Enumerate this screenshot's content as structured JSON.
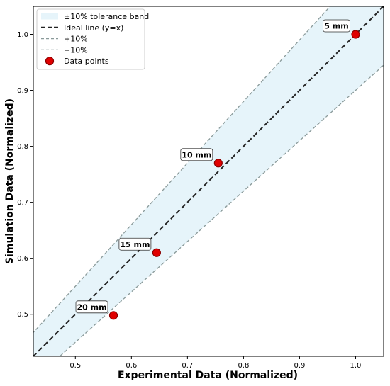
{
  "colors": {
    "band_fill": "#e6f4fa",
    "ideal_line": "#222222",
    "tolerance_line": "#8a9a9a",
    "point_fill": "#e00000",
    "point_edge": "#8b0000",
    "axis": "#000000",
    "label_box": "#ffffff"
  },
  "chart_data": {
    "type": "scatter",
    "xlabel": "Experimental Data (Normalized)",
    "ylabel": "Simulation Data (Normalized)",
    "xlim": [
      0.425,
      1.05
    ],
    "ylim": [
      0.425,
      1.05
    ],
    "xticks": [
      0.5,
      0.6,
      0.7,
      0.8,
      0.9,
      1.0
    ],
    "yticks": [
      0.5,
      0.6,
      0.7,
      0.8,
      0.9,
      1.0
    ],
    "xtick_labels": [
      "0.5",
      "0.6",
      "0.7",
      "0.8",
      "0.9",
      "1.0"
    ],
    "ytick_labels": [
      "0.5",
      "0.6",
      "0.7",
      "0.8",
      "0.9",
      "1.0"
    ],
    "grid": false,
    "legend_position": "top-left",
    "legend": [
      {
        "key": "band",
        "label": "±10% tolerance band"
      },
      {
        "key": "ideal",
        "label": "Ideal line (y=x)"
      },
      {
        "key": "plus",
        "label": "+10%"
      },
      {
        "key": "minus",
        "label": "−10%"
      },
      {
        "key": "points",
        "label": "Data points"
      }
    ],
    "tolerance": 0.1,
    "points": [
      {
        "label": "5 mm",
        "x": 1.0,
        "y": 1.0
      },
      {
        "label": "10 mm",
        "x": 0.755,
        "y": 0.77
      },
      {
        "label": "15 mm",
        "x": 0.645,
        "y": 0.61
      },
      {
        "label": "20 mm",
        "x": 0.568,
        "y": 0.498
      }
    ]
  }
}
